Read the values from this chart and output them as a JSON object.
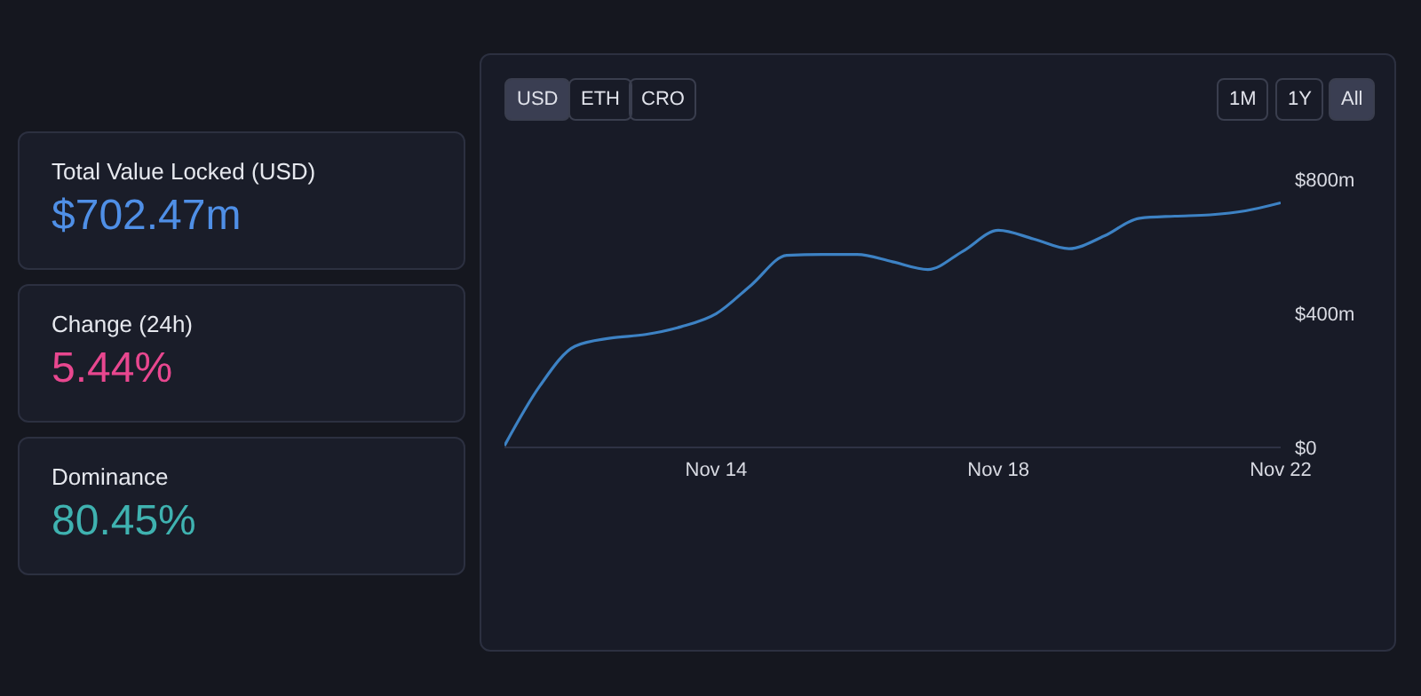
{
  "chart_data": {
    "type": "line",
    "x": [
      "--11-11",
      "--11-11T12:00",
      "--11-12",
      "--11-12T12:00",
      "--11-13",
      "--11-13T12:00",
      "--11-14",
      "--11-14T12:00",
      "--11-15",
      "--11-15T12:00",
      "--11-16",
      "--11-16T12:00",
      "--11-17",
      "--11-17T12:00",
      "--11-18",
      "--11-18T12:00",
      "--11-19",
      "--11-19T12:00",
      "--11-20",
      "--11-20T12:00",
      "--11-21",
      "--11-21T12:00",
      "--11-22"
    ],
    "series": [
      {
        "color": "#3d82c4",
        "values": [
          5,
          183,
          302,
          326,
          337,
          360,
          399,
          485,
          573,
          576,
          576,
          554,
          531,
          586,
          648,
          622,
          593,
          631,
          684,
          690,
          694,
          706,
          730
        ]
      }
    ],
    "xticks": [
      {
        "value": "--11-14",
        "label": "Nov 14"
      },
      {
        "value": "--11-18",
        "label": "Nov 18"
      },
      {
        "value": "--11-22",
        "label": "Nov 22"
      }
    ],
    "xlim": [
      "--11-11",
      "--11-22"
    ],
    "ylim": [
      0,
      800
    ],
    "yticks": [
      {
        "value": 0,
        "label": "$0"
      },
      {
        "value": 400,
        "label": "$400m"
      },
      {
        "value": 800,
        "label": "$800m"
      }
    ],
    "grid": false,
    "legend": false,
    "marker": "none",
    "line_style": "solid",
    "annotations": [
      "Total Value Locked (USD)",
      "$702.47m",
      "Change (24h)",
      "5.44%",
      "Dominance",
      "80.45%",
      "USD",
      "ETH",
      "CRO",
      "1M",
      "1Y",
      "All"
    ]
  }
}
